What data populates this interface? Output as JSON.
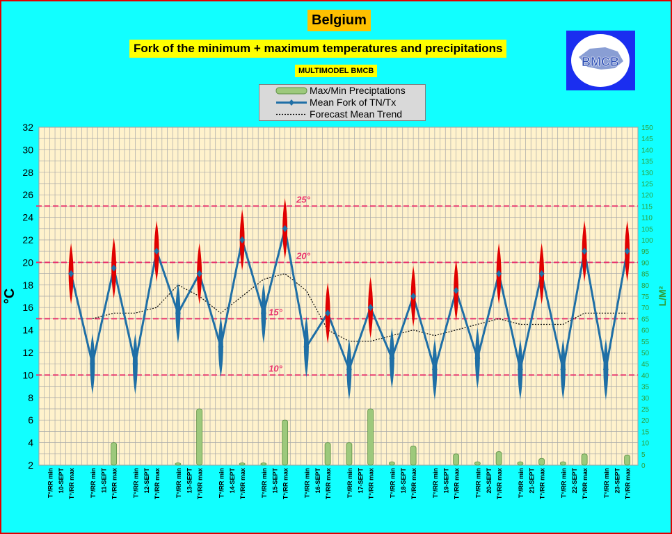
{
  "title": "Belgium",
  "subtitle": "Fork of the minimum + maximum temperatures and precipitations",
  "model_label": "MULTIMODEL BMCB",
  "logo": {
    "text": "BMCB"
  },
  "legend": [
    {
      "label": "Max/Min Preciptations"
    },
    {
      "label": "Mean Fork of TN/Tx"
    },
    {
      "label": "Forecast Mean Trend"
    }
  ],
  "colors": {
    "background": "#11ffff",
    "plot_background": "#fff2cc",
    "frame_border": "#e00000",
    "mean_line": "#1f6fa6",
    "max_marker": "#e00000",
    "min_marker": "#1f6fa6",
    "precip_bar": "#9dc97c",
    "ref_line": "#e8336d",
    "right_axis": "#2e9e3a"
  },
  "chart_data": {
    "type": "line",
    "ylabel": "°C",
    "ylabel_right": "L/M²",
    "ylim": [
      2,
      32
    ],
    "yticks": [
      2,
      4,
      6,
      8,
      10,
      12,
      14,
      16,
      18,
      20,
      22,
      24,
      26,
      28,
      30,
      32
    ],
    "ylim_right": [
      0,
      150
    ],
    "yticks_right": [
      0,
      5,
      10,
      15,
      20,
      25,
      30,
      35,
      40,
      45,
      50,
      55,
      60,
      65,
      70,
      75,
      80,
      85,
      90,
      95,
      100,
      105,
      110,
      115,
      120,
      125,
      130,
      135,
      140,
      145,
      150
    ],
    "grid": true,
    "categories": [
      "T°/RR min",
      "10-SEPT",
      "T°/RR max",
      "",
      "T°/RR min",
      "11-SEPT",
      "T°/RR max",
      "",
      "T°/RR min",
      "12-SEPT",
      "T°/RR max",
      "",
      "T°/RR min",
      "13-SEPT",
      "T°/RR max",
      "",
      "T°/RR min",
      "14-SEPT",
      "T°/RR max",
      "",
      "T°/RR min",
      "15-SEPT",
      "T°/RR max",
      "",
      "T°/RR min",
      "16-SEPT",
      "T°/RR max",
      "",
      "T°/RR min",
      "17-SEPT",
      "T°/RR max",
      "",
      "T°/RR min",
      "18-SEPT",
      "T°/RR max",
      "",
      "T°/RR min",
      "19-SEPT",
      "T°/RR max",
      "",
      "T°/RR min",
      "20-SEPT",
      "T°/RR max",
      "",
      "T°/RR min",
      "21-SEPT",
      "T°/RR max",
      "",
      "T°/RR min",
      "22-SEPT",
      "T°/RR max",
      "",
      "T°/RR min",
      "23-SEPT",
      "T°/RR max"
    ],
    "series": [
      {
        "type": "line",
        "values": [
          null,
          null,
          19,
          null,
          11,
          null,
          19.5,
          null,
          11,
          null,
          21,
          null,
          15.5,
          null,
          19,
          null,
          12.5,
          null,
          22,
          null,
          15.5,
          null,
          23,
          null,
          12.5,
          null,
          15.5,
          null,
          10.5,
          null,
          16,
          null,
          11.5,
          null,
          17,
          null,
          10.5,
          null,
          17.5,
          null,
          11.5,
          null,
          19,
          null,
          10.5,
          null,
          19,
          null,
          10.5,
          null,
          21,
          null,
          10.5,
          null,
          21
        ]
      },
      {
        "type": "line",
        "values": [
          null,
          null,
          null,
          null,
          15,
          null,
          15.5,
          null,
          15.5,
          null,
          16,
          null,
          18,
          null,
          17,
          null,
          15.5,
          null,
          17,
          null,
          18.5,
          null,
          19,
          null,
          17.5,
          null,
          14,
          null,
          13,
          null,
          13,
          null,
          13.5,
          null,
          14,
          null,
          13.5,
          null,
          14,
          null,
          14.5,
          null,
          15,
          null,
          14.5,
          null,
          14.5,
          null,
          14.5,
          null,
          15.5,
          null,
          15.5,
          null,
          15.5
        ]
      },
      {
        "type": "bar",
        "values": [
          0,
          0,
          0,
          0,
          0,
          0,
          10,
          0,
          0,
          0,
          0,
          0,
          1,
          0,
          25,
          0,
          0,
          0,
          1,
          0,
          1,
          0,
          20,
          0,
          0,
          0,
          10,
          0,
          10,
          0,
          25,
          0,
          1.5,
          0,
          8.5,
          0,
          0,
          0,
          5,
          0,
          1.5,
          0,
          6,
          0,
          1.5,
          0,
          3,
          0,
          1.5,
          0,
          5,
          0,
          0,
          0,
          4.5
        ]
      }
    ],
    "reference_lines": [
      {
        "label": "25°",
        "value": 25
      },
      {
        "label": "20°",
        "value": 20
      },
      {
        "label": "15°",
        "value": 15
      },
      {
        "label": "10°",
        "value": 10
      }
    ]
  }
}
